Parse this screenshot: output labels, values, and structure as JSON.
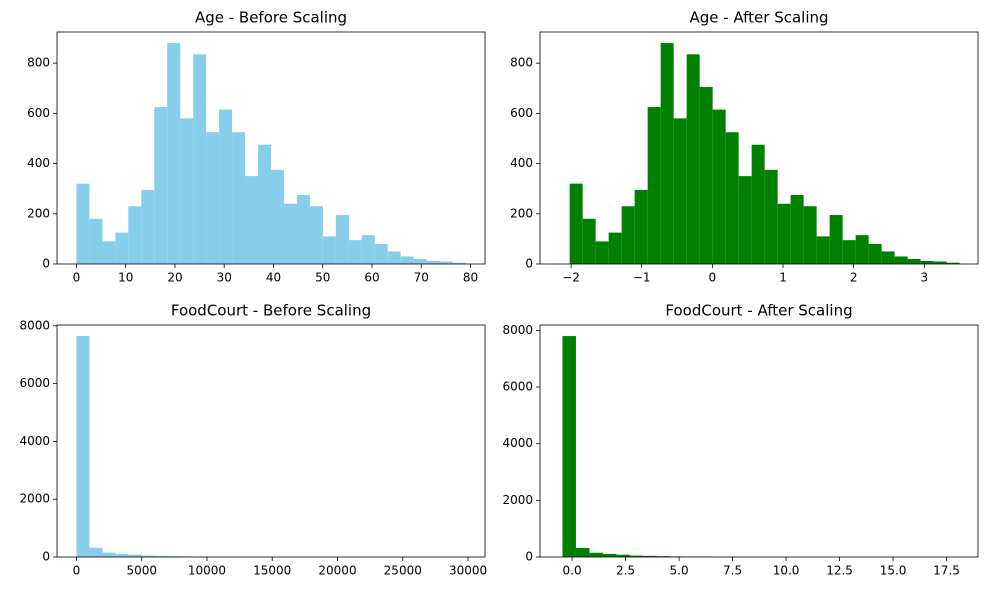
{
  "chart_data": [
    {
      "type": "histogram",
      "title": "Age - Before Scaling",
      "color": "#87ceeb",
      "bins": [
        0,
        2.63,
        5.27,
        7.9,
        10.53,
        13.17,
        15.8,
        18.43,
        21.07,
        23.7,
        26.33,
        28.97,
        31.6,
        34.23,
        36.87,
        39.5,
        42.13,
        44.77,
        47.4,
        50.03,
        52.67,
        55.3,
        57.93,
        60.57,
        63.2,
        65.83,
        68.47,
        71.1,
        73.73,
        76.37,
        79
      ],
      "values": [
        320,
        180,
        90,
        125,
        230,
        295,
        625,
        880,
        580,
        835,
        525,
        615,
        525,
        350,
        475,
        375,
        240,
        275,
        230,
        110,
        195,
        95,
        115,
        80,
        50,
        30,
        20,
        12,
        10,
        5
      ],
      "xlim": [
        -3.95,
        82.95
      ],
      "ylim": [
        0,
        924
      ],
      "xticks": [
        0,
        10,
        20,
        30,
        40,
        50,
        60,
        70,
        80
      ],
      "yticks": [
        0,
        200,
        400,
        600,
        800
      ]
    },
    {
      "type": "histogram",
      "title": "Age - After Scaling",
      "color": "#008000",
      "bins": [
        -2.02,
        -1.836,
        -1.652,
        -1.468,
        -1.284,
        -1.1,
        -0.916,
        -0.732,
        -0.548,
        -0.364,
        -0.18,
        0.004,
        0.188,
        0.372,
        0.556,
        0.74,
        0.924,
        1.108,
        1.292,
        1.476,
        1.66,
        1.844,
        2.028,
        2.212,
        2.396,
        2.58,
        2.764,
        2.948,
        3.132,
        3.316,
        3.5
      ],
      "values": [
        320,
        180,
        90,
        125,
        230,
        295,
        625,
        880,
        580,
        835,
        705,
        615,
        525,
        350,
        475,
        375,
        240,
        275,
        230,
        110,
        195,
        95,
        115,
        80,
        50,
        30,
        20,
        12,
        10,
        5
      ],
      "xlim": [
        -2.44,
        3.76
      ],
      "ylim": [
        0,
        924
      ],
      "xticks": [
        {
          "value": -2,
          "label": "−2"
        },
        {
          "value": -1,
          "label": "−1"
        },
        0,
        1,
        2,
        3
      ],
      "yticks": [
        0,
        200,
        400,
        600,
        800
      ]
    },
    {
      "type": "histogram",
      "title": "FoodCourt - Before Scaling",
      "color": "#87ceeb",
      "bins": [
        0,
        1000,
        2000,
        3000,
        4000,
        5000,
        6000,
        7000,
        8000,
        9000,
        10000,
        11000,
        12000,
        13000,
        14000,
        15000,
        16000,
        17000,
        18000,
        19000,
        20000,
        21000,
        22000,
        23000,
        24000,
        25000,
        26000,
        27000,
        28000,
        29000,
        30000
      ],
      "values": [
        7650,
        320,
        150,
        110,
        80,
        50,
        40,
        30,
        20,
        15,
        10,
        8,
        6,
        5,
        4,
        3,
        3,
        2,
        2,
        2,
        1,
        1,
        1,
        1,
        1,
        0,
        0,
        0,
        0,
        1
      ],
      "xlim": [
        -1490,
        31300
      ],
      "ylim": [
        0,
        8030
      ],
      "xticks": [
        0,
        5000,
        10000,
        15000,
        20000,
        25000,
        30000
      ],
      "yticks": [
        0,
        2000,
        4000,
        6000,
        8000
      ]
    },
    {
      "type": "histogram",
      "title": "FoodCourt - After Scaling",
      "color": "#008000",
      "bins": [
        -0.45,
        0.18,
        0.81,
        1.44,
        2.07,
        2.7,
        3.33,
        3.96,
        4.59,
        5.22,
        5.85,
        6.48,
        7.11,
        7.74,
        8.37,
        9,
        9.63,
        10.26,
        10.89,
        11.52,
        12.15,
        12.78,
        13.41,
        14.04,
        14.67,
        15.3,
        15.93,
        16.56,
        17.19,
        17.82,
        18.45
      ],
      "values": [
        7800,
        320,
        150,
        110,
        80,
        50,
        40,
        30,
        20,
        15,
        10,
        8,
        6,
        5,
        4,
        3,
        3,
        2,
        2,
        2,
        1,
        1,
        1,
        1,
        1,
        0,
        0,
        0,
        0,
        1
      ],
      "xlim": [
        -1.5,
        18.97
      ],
      "ylim": [
        0,
        8190
      ],
      "xticks": [
        {
          "value": 0,
          "label": "0.0"
        },
        2.5,
        {
          "value": 5,
          "label": "5.0"
        },
        7.5,
        {
          "value": 10,
          "label": "10.0"
        },
        12.5,
        {
          "value": 15,
          "label": "15.0"
        },
        17.5
      ],
      "yticks": [
        0,
        2000,
        4000,
        6000,
        8000
      ]
    }
  ]
}
